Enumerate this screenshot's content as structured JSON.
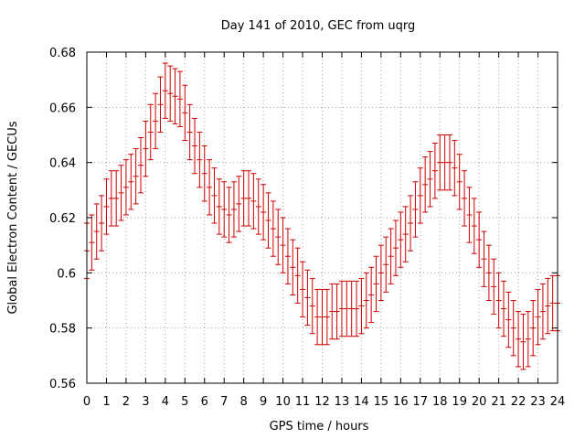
{
  "chart_data": {
    "type": "scatter",
    "title": "Day 141 of 2010, GEC from uqrg",
    "xlabel": "GPS time / hours",
    "ylabel": "Global Electron Content / GECUs",
    "xlim": [
      0,
      24
    ],
    "ylim": [
      0.56,
      0.68
    ],
    "grid": true,
    "x_ticks": [
      "0",
      "1",
      "2",
      "3",
      "4",
      "5",
      "6",
      "7",
      "8",
      "9",
      "10",
      "11",
      "12",
      "13",
      "14",
      "15",
      "16",
      "17",
      "18",
      "19",
      "20",
      "21",
      "22",
      "23",
      "24"
    ],
    "y_ticks": [
      "0.56",
      "0.58",
      "0.6",
      "0.62",
      "0.64",
      "0.66",
      "0.68"
    ],
    "series_color": "#cc0000",
    "error": 0.01,
    "series": [
      {
        "x": [
          0,
          0.25,
          0.5,
          0.75,
          1,
          1.25,
          1.5,
          1.75,
          2,
          2.25,
          2.5,
          2.75,
          3,
          3.25,
          3.5,
          3.75,
          4,
          4.25,
          4.5,
          4.75,
          5,
          5.25,
          5.5,
          5.75,
          6,
          6.25,
          6.5,
          6.75,
          7,
          7.25,
          7.5,
          7.75,
          8,
          8.25,
          8.5,
          8.75,
          9,
          9.25,
          9.5,
          9.75,
          10,
          10.25,
          10.5,
          10.75,
          11,
          11.25,
          11.5,
          11.75,
          12,
          12.25,
          12.5,
          12.75,
          13,
          13.25,
          13.5,
          13.75,
          14,
          14.25,
          14.5,
          14.75,
          15,
          15.25,
          15.5,
          15.75,
          16,
          16.25,
          16.5,
          16.75,
          17,
          17.25,
          17.5,
          17.75,
          18,
          18.25,
          18.5,
          18.75,
          19,
          19.25,
          19.5,
          19.75,
          20,
          20.25,
          20.5,
          20.75,
          21,
          21.25,
          21.5,
          21.75,
          22,
          22.25,
          22.5,
          22.75,
          23,
          23.25,
          23.5,
          23.75,
          24
        ],
        "values": [
          0.608,
          0.611,
          0.615,
          0.618,
          0.624,
          0.627,
          0.627,
          0.629,
          0.631,
          0.633,
          0.635,
          0.639,
          0.645,
          0.651,
          0.655,
          0.661,
          0.666,
          0.665,
          0.664,
          0.663,
          0.658,
          0.651,
          0.646,
          0.641,
          0.636,
          0.631,
          0.628,
          0.624,
          0.623,
          0.621,
          0.623,
          0.625,
          0.627,
          0.627,
          0.626,
          0.624,
          0.622,
          0.619,
          0.616,
          0.613,
          0.61,
          0.606,
          0.602,
          0.599,
          0.594,
          0.591,
          0.588,
          0.584,
          0.584,
          0.584,
          0.586,
          0.586,
          0.587,
          0.587,
          0.587,
          0.587,
          0.588,
          0.59,
          0.592,
          0.596,
          0.6,
          0.603,
          0.606,
          0.609,
          0.612,
          0.614,
          0.618,
          0.623,
          0.628,
          0.632,
          0.634,
          0.637,
          0.64,
          0.64,
          0.64,
          0.638,
          0.633,
          0.627,
          0.621,
          0.617,
          0.612,
          0.605,
          0.6,
          0.595,
          0.59,
          0.587,
          0.583,
          0.58,
          0.576,
          0.575,
          0.576,
          0.58,
          0.584,
          0.586,
          0.588,
          0.589,
          0.589
        ]
      }
    ]
  }
}
